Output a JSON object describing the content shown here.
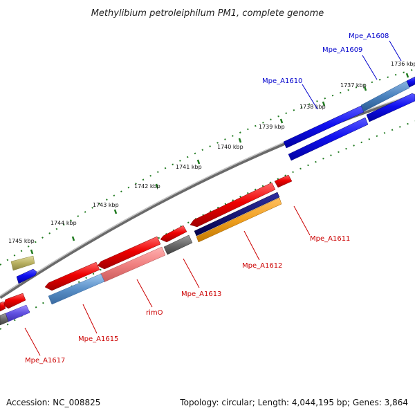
{
  "title": "Methylibium petroleiphilum PM1, complete genome",
  "footer": {
    "accession": "Accession: NC_008825",
    "summary": "Topology: circular; Length: 4,044,195 bp; Genes: 3,864"
  },
  "axis": {
    "ticks": [
      "1736 kbp",
      "1737 kbp",
      "1738 kbp",
      "1739 kbp",
      "1740 kbp",
      "1741 kbp",
      "1742 kbp",
      "1743 kbp",
      "1744 kbp",
      "1745 kbp"
    ]
  },
  "labels": {
    "forward_color": "#0000cc",
    "reverse_color": "#cc0000",
    "forward": [
      "Mpe_A1608",
      "Mpe_A1609",
      "Mpe_A1610"
    ],
    "reverse": [
      "Mpe_A1611",
      "Mpe_A1612",
      "Mpe_A1613",
      "rimO",
      "Mpe_A1615",
      "Mpe_A1617"
    ]
  },
  "colors": {
    "forward_cds": "#1a1aee",
    "reverse_cds": "#ee1111",
    "backbone": "#8a8a8a",
    "tick_marks": "#1f7a1f"
  }
}
